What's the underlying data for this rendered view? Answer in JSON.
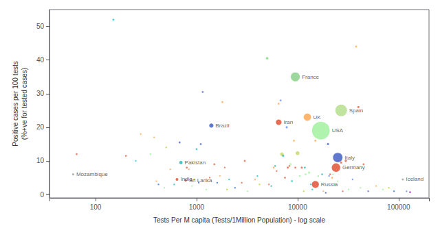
{
  "chart_data": {
    "type": "scatter",
    "xlabel": "Tests Per M capita (Tests/1Million Population) - log scale",
    "ylabel": "Positive cases per 100 tests\n(%+ve for tested cases)",
    "log": "x",
    "grid": false,
    "xlim": [
      35,
      200000
    ],
    "xticks": [
      100,
      1000,
      10000,
      100000
    ],
    "ylim": [
      -1,
      55
    ],
    "yticks": [
      0,
      10,
      20,
      30,
      40,
      50
    ],
    "series": [
      {
        "x": [
          150,
          200,
          65,
          250,
          280,
          350,
          380,
          420,
          480,
          400,
          500,
          550,
          600,
          680,
          800,
          840,
          900,
          950,
          1000,
          1050,
          1100,
          1150,
          1250,
          1350,
          1500,
          1600,
          1700,
          1800,
          1900,
          2000,
          2100,
          2400,
          2800,
          3000,
          3200,
          3800,
          4000,
          4200,
          5000,
          5200,
          5500,
          5800,
          6000,
          6200,
          6500,
          6800,
          7000,
          7200,
          7500,
          7800,
          8000,
          8300,
          8500,
          8800,
          9200,
          9500,
          10000,
          10500,
          11000,
          11500,
          11800,
          12000,
          13000,
          13500,
          14000,
          15000,
          16000,
          17500,
          18000,
          19000,
          20000,
          20500,
          21000,
          22000,
          22500,
          23500,
          25000,
          27000,
          28000,
          30000,
          32000,
          35000,
          38000,
          40000,
          42000,
          45000,
          50000,
          60000,
          70000,
          80000,
          90000,
          120000,
          130000
        ],
        "values": [
          52,
          11.5,
          12,
          10,
          18,
          12,
          17,
          3,
          2,
          4,
          14,
          7.5,
          3,
          15.5,
          8,
          7.5,
          2.5,
          4.5,
          13.5,
          3.5,
          15,
          30.5,
          1.5,
          5,
          9,
          3.5,
          5.5,
          27.5,
          8,
          1.5,
          4.5,
          2,
          3.5,
          10,
          1,
          4.5,
          5.5,
          3,
          40.5,
          3,
          2.5,
          8,
          8.5,
          7,
          27,
          28,
          12,
          11.5,
          5,
          20,
          8,
          8.5,
          9,
          4,
          16,
          8,
          12.3,
          5.5,
          8,
          1,
          8,
          6,
          6.5,
          3,
          1.5,
          16,
          5.5,
          6,
          1,
          0.5,
          15,
          5.5,
          6,
          5,
          6,
          3,
          4,
          9.5,
          1,
          10,
          1.5,
          4.5,
          44,
          26,
          2,
          9,
          1,
          2.5,
          1.5,
          2,
          1,
          1,
          0.7
        ],
        "sizes": [
          5,
          4,
          4,
          3,
          3,
          4,
          3,
          3,
          3,
          3,
          3,
          3,
          3,
          4,
          4,
          3,
          3,
          3,
          4,
          3,
          4,
          4,
          3,
          3,
          4,
          3,
          3,
          4,
          3,
          3,
          3,
          3,
          3,
          4,
          3,
          3,
          3,
          3,
          7,
          3,
          3,
          4,
          4,
          3,
          4,
          4,
          14,
          5,
          4,
          5,
          5,
          4,
          5,
          4,
          4,
          4,
          17,
          4,
          5,
          3,
          4,
          4,
          5,
          3,
          3,
          5,
          4,
          4,
          3,
          3,
          5,
          3,
          4,
          4,
          3,
          3,
          3,
          5,
          3,
          6,
          3,
          3,
          5,
          5,
          3,
          4,
          3,
          3,
          3,
          3,
          3,
          3,
          4
        ],
        "colors": [
          "#00bbcc",
          "#dd4422",
          "#dd4422",
          "#00bbcc",
          "#ff9933",
          "#90ee90",
          "#ff9933",
          "#0055cc",
          "#90ee90",
          "#ff9933",
          "#aacc00",
          "#ff9933",
          "#00aaaa",
          "#2244bb",
          "#dd4422",
          "#ff9933",
          "#90ee90",
          "#aabb00",
          "#00aaaa",
          "#2244bb",
          "#2244bb",
          "#4444bb",
          "#90ee90",
          "#dd4422",
          "#dd4422",
          "#0055cc",
          "#ff9933",
          "#ff9933",
          "#dd4422",
          "#aacc00",
          "#00aaaa",
          "#0055cc",
          "#dd4422",
          "#dd4422",
          "#90ee90",
          "#ff9933",
          "#00aaaa",
          "#aacc00",
          "#66cc66",
          "#dd4422",
          "#00aaaa",
          "#ff9933",
          "#00aaaa",
          "#dd4422",
          "#ff9933",
          "#4477ff",
          "#bbcc44",
          "#00aaaa",
          "#dd4422",
          "#4477ff",
          "#dd4422",
          "#dd4422",
          "#90ee90",
          "#00aaaa",
          "#ff9933",
          "#dd4422",
          "#bbcc44",
          "#90ee90",
          "#dd4422",
          "#aacc00",
          "#00aaaa",
          "#90ee90",
          "#90ee90",
          "#00aaaa",
          "#00aaaa",
          "#ff9933",
          "#90ee90",
          "#00aaaa",
          "#ff9933",
          "#2244bb",
          "#2244bb",
          "#4477ee",
          "#dd4422",
          "#ff9933",
          "#90ee90",
          "#aacc00",
          "#90ee90",
          "#dd4422",
          "#dd4422",
          "#dd4422",
          "#90ee90",
          "#4477ff",
          "#ff9933",
          "#dd4422",
          "#90ee90",
          "#dd4422",
          "#2244bb",
          "#ff9933",
          "#90ee90",
          "#aacc00",
          "#0055cc",
          "#4477ff",
          "#8800aa"
        ]
      },
      {
        "labels": [
          "USA",
          "Spain",
          "France",
          "Italy",
          "Germany",
          "UK",
          "Iran",
          "Russia",
          "Brazil",
          "Pakistan",
          "India",
          "Sri Lanka",
          "Mozambique",
          "Iceland"
        ],
        "x": [
          17000,
          27000,
          9500,
          25000,
          24000,
          12500,
          6500,
          15000,
          1400,
          700,
          640,
          780,
          60,
          110000
        ],
        "values": [
          19,
          25,
          35,
          11,
          8,
          23,
          21.5,
          3,
          20.5,
          9.5,
          4.5,
          4.2,
          6,
          4.5
        ],
        "sizes": [
          350,
          150,
          90,
          100,
          80,
          60,
          35,
          55,
          20,
          12,
          8,
          6,
          5,
          5
        ],
        "colors": [
          "#90ee90",
          "#a8d878",
          "#78c878",
          "#2244bb",
          "#dd3311",
          "#ff9933",
          "#dd3311",
          "#dd3311",
          "#2244bb",
          "#00aaaa",
          "#dd3311",
          "#dd3311",
          "#999999",
          "#999999"
        ]
      }
    ]
  }
}
